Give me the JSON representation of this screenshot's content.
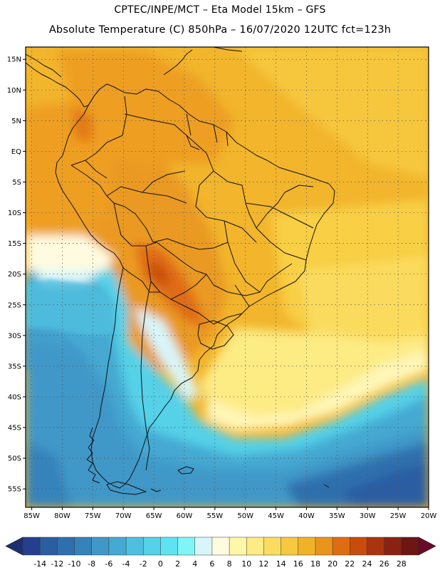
{
  "header": {
    "line1": "CPTEC/INPE/MCT –  Eta Model 15km – GFS",
    "line2": "Absolute Temperature (C) 850hPa – 16/07/2020 12UTC fct=123h"
  },
  "map": {
    "lat_labels": [
      "15N",
      "10N",
      "5N",
      "EQ",
      "5S",
      "10S",
      "15S",
      "20S",
      "25S",
      "30S",
      "35S",
      "40S",
      "45S",
      "50S",
      "55S"
    ],
    "lon_labels": [
      "85W",
      "80W",
      "75W",
      "70W",
      "65W",
      "60W",
      "55W",
      "50W",
      "45W",
      "40W",
      "35W",
      "30W",
      "25W",
      "20W"
    ],
    "lon_range": [
      -86,
      -20
    ],
    "lat_range": [
      17,
      -58
    ]
  },
  "colorbar": {
    "labels": [
      "-14",
      "-12",
      "-10",
      "-8",
      "-6",
      "-4",
      "-2",
      "0",
      "2",
      "4",
      "6",
      "8",
      "10",
      "12",
      "14",
      "16",
      "18",
      "20",
      "22",
      "24",
      "26",
      "28"
    ],
    "colors": [
      "#243f8f",
      "#2b5da3",
      "#2e6fae",
      "#3583bb",
      "#3f98c8",
      "#45a9d2",
      "#4fbfdf",
      "#55d1e8",
      "#5fe3f0",
      "#7ff5f5",
      "#d8f6fa",
      "#fffbe0",
      "#fff7a8",
      "#fdeb84",
      "#fbdc60",
      "#f6c93f",
      "#f0b327",
      "#ea941c",
      "#e06c12",
      "#c84c0c",
      "#ab3410",
      "#8a2212",
      "#6d1614"
    ],
    "low_arrow_color": "#1c2f72",
    "high_arrow_color": "#6a0a2a"
  }
}
